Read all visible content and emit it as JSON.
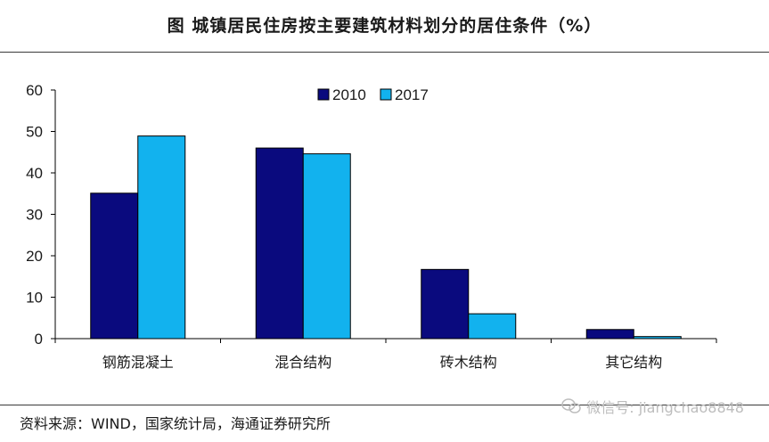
{
  "title": "图    城镇居民住房按主要建筑材料划分的居住条件（%）",
  "source": "资料来源：WIND，国家统计局，海通证券研究所",
  "watermark": "微信号: jiangchao8848",
  "colors": {
    "series_2010": "#0a0a7e",
    "series_2017": "#12b2ee"
  },
  "chart_data": {
    "type": "bar",
    "title": "",
    "xlabel": "",
    "ylabel": "",
    "categories": [
      "钢筋混凝土",
      "混合结构",
      "砖木结构",
      "其它结构"
    ],
    "series": [
      {
        "name": "2010",
        "values": [
          35.1,
          46.0,
          16.7,
          2.2
        ]
      },
      {
        "name": "2017",
        "values": [
          48.9,
          44.6,
          6.0,
          0.5
        ]
      }
    ],
    "ylim": [
      0,
      60
    ],
    "yticks": [
      0,
      10,
      20,
      30,
      40,
      50,
      60
    ],
    "legend": "top-center",
    "grid": false
  }
}
